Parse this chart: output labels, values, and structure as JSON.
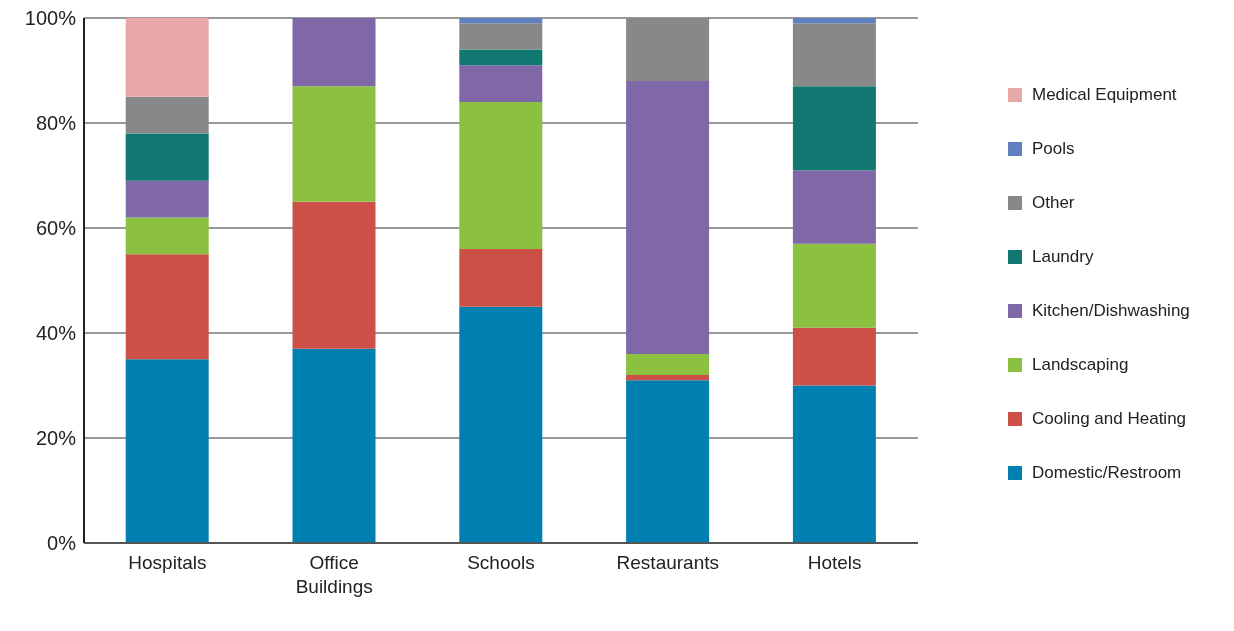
{
  "chart_data": {
    "type": "bar",
    "stacked": true,
    "categories": [
      "Hospitals",
      "Office Buildings",
      "Schools",
      "Restaurants",
      "Hotels"
    ],
    "ylim": [
      0,
      100
    ],
    "yticks": [
      {
        "value": 0,
        "label": "0%"
      },
      {
        "value": 20,
        "label": "20%"
      },
      {
        "value": 40,
        "label": "40%"
      },
      {
        "value": 60,
        "label": "60%"
      },
      {
        "value": 80,
        "label": "80%"
      },
      {
        "value": 100,
        "label": "100%"
      }
    ],
    "grid": "y",
    "legend": "right",
    "series": [
      {
        "name": "Domestic/Restroom",
        "color": "#0080b0",
        "values": [
          35,
          37,
          45,
          31,
          30
        ]
      },
      {
        "name": "Cooling and Heating",
        "color": "#cc5048",
        "values": [
          20,
          28,
          11,
          1,
          11
        ]
      },
      {
        "name": "Landscaping",
        "color": "#8cc040",
        "values": [
          7,
          22,
          28,
          4,
          16
        ]
      },
      {
        "name": "Kitchen/Dishwashing",
        "color": "#8068a8",
        "values": [
          7,
          13,
          7,
          52,
          14
        ]
      },
      {
        "name": "Laundry",
        "color": "#107870",
        "values": [
          9,
          0,
          3,
          0,
          16
        ]
      },
      {
        "name": "Other",
        "color": "#888888",
        "values": [
          7,
          0,
          5,
          12,
          12
        ]
      },
      {
        "name": "Pools",
        "color": "#6080c0",
        "values": [
          0,
          0,
          1,
          0,
          1
        ]
      },
      {
        "name": "Medical Equipment",
        "color": "#e8a8a8",
        "values": [
          15,
          0,
          0,
          0,
          0
        ]
      }
    ]
  }
}
